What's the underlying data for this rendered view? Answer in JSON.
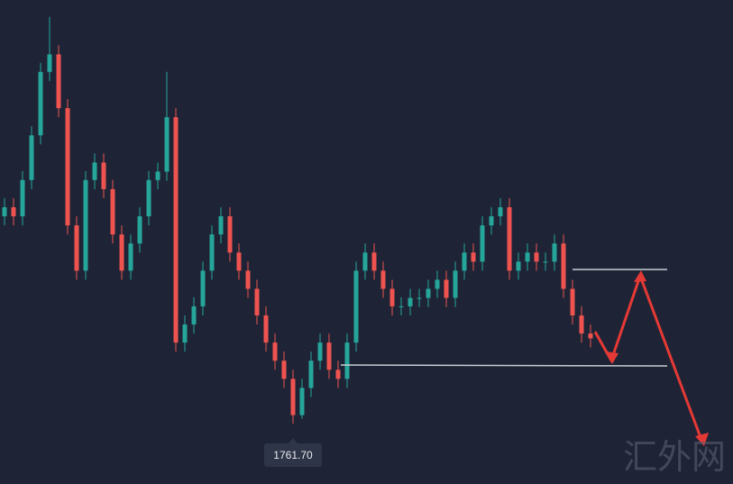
{
  "chart_data": {
    "type": "candlestick",
    "up_color": "#26a69a",
    "down_color": "#ef5350",
    "ylim": [
      1751.7,
      1831.8
    ],
    "low_label": "1761.70",
    "watermark": "汇外网",
    "open": [
      1796.0,
      1797.5,
      1796.0,
      1802.0,
      1809.4,
      1819.9,
      1822.8,
      1813.9,
      1794.5,
      1787.0,
      1802.0,
      1804.9,
      1800.5,
      1793.0,
      1787.0,
      1791.5,
      1796.0,
      1802.0,
      1803.4,
      1812.4,
      1775.1,
      1778.1,
      1781.1,
      1787.0,
      1793.0,
      1796.0,
      1790.0,
      1787.0,
      1784.0,
      1779.6,
      1775.1,
      1772.1,
      1769.1,
      1763.1,
      1767.6,
      1772.1,
      1775.1,
      1770.6,
      1769.1,
      1775.1,
      1787.0,
      1790.0,
      1787.0,
      1784.0,
      1781.1,
      1781.1,
      1782.5,
      1782.5,
      1784.0,
      1785.5,
      1782.5,
      1787.0,
      1790.0,
      1788.5,
      1794.5,
      1796.0,
      1797.5,
      1787.0,
      1788.5,
      1790.0,
      1788.5,
      1788.5,
      1791.5,
      1784.0,
      1779.6,
      1776.6
    ],
    "high": [
      1799.0,
      1799.0,
      1803.5,
      1810.9,
      1821.4,
      1829.0,
      1824.3,
      1815.4,
      1796.0,
      1803.5,
      1806.4,
      1806.4,
      1802.0,
      1794.5,
      1793.0,
      1797.5,
      1803.5,
      1804.9,
      1819.9,
      1813.9,
      1779.6,
      1782.6,
      1788.5,
      1794.5,
      1797.5,
      1797.5,
      1791.5,
      1788.5,
      1785.5,
      1781.1,
      1776.6,
      1773.6,
      1770.6,
      1769.1,
      1773.6,
      1776.6,
      1776.6,
      1772.1,
      1776.6,
      1788.5,
      1791.5,
      1791.5,
      1788.5,
      1785.5,
      1782.6,
      1784.0,
      1784.0,
      1785.5,
      1787.0,
      1787.0,
      1788.5,
      1791.5,
      1791.5,
      1796.0,
      1797.5,
      1799.0,
      1799.0,
      1790.0,
      1791.5,
      1791.5,
      1790.0,
      1793.0,
      1793.0,
      1785.5,
      1781.1,
      1778.1
    ],
    "low": [
      1794.5,
      1794.5,
      1794.5,
      1800.5,
      1807.9,
      1818.4,
      1812.4,
      1793.0,
      1785.5,
      1785.5,
      1800.5,
      1799.0,
      1791.5,
      1785.5,
      1785.5,
      1790.0,
      1794.5,
      1800.5,
      1801.9,
      1773.6,
      1773.6,
      1776.6,
      1779.6,
      1785.5,
      1791.5,
      1788.5,
      1785.5,
      1782.5,
      1778.1,
      1773.6,
      1770.6,
      1767.6,
      1761.7,
      1762.5,
      1766.1,
      1770.6,
      1769.1,
      1767.6,
      1767.6,
      1773.6,
      1785.5,
      1785.5,
      1782.5,
      1779.6,
      1779.6,
      1779.6,
      1781.0,
      1781.0,
      1782.5,
      1781.0,
      1781.0,
      1785.5,
      1787.0,
      1787.0,
      1793.0,
      1794.5,
      1785.5,
      1785.5,
      1787.0,
      1787.0,
      1787.0,
      1787.0,
      1782.5,
      1778.1,
      1775.1,
      1774.3
    ],
    "close": [
      1797.5,
      1796.0,
      1802.0,
      1809.4,
      1819.9,
      1822.8,
      1813.9,
      1794.5,
      1787.0,
      1802.0,
      1804.9,
      1800.5,
      1793.0,
      1787.0,
      1791.5,
      1796.0,
      1802.0,
      1803.4,
      1812.4,
      1775.1,
      1778.1,
      1781.1,
      1787.0,
      1793.0,
      1796.0,
      1790.0,
      1787.0,
      1784.0,
      1779.6,
      1775.1,
      1772.1,
      1769.1,
      1763.1,
      1767.6,
      1772.1,
      1775.1,
      1770.6,
      1769.1,
      1775.1,
      1787.0,
      1790.0,
      1787.0,
      1784.0,
      1781.1,
      1781.1,
      1782.5,
      1782.5,
      1784.0,
      1785.5,
      1782.5,
      1787.0,
      1790.0,
      1788.5,
      1794.5,
      1796.0,
      1797.5,
      1787.0,
      1788.5,
      1790.0,
      1788.5,
      1788.5,
      1791.5,
      1784.0,
      1779.6,
      1776.6,
      1775.8
    ]
  }
}
